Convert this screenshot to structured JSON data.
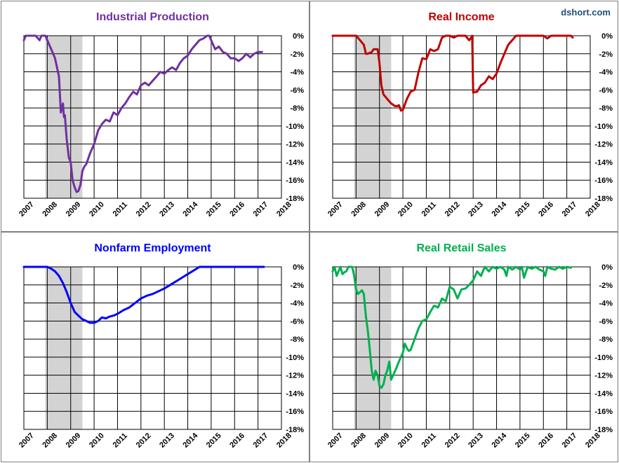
{
  "watermark": {
    "text": "dshort.com",
    "color": "#1f4e79"
  },
  "recession": {
    "start": 2007.917,
    "end": 2009.5,
    "color": "#d3d3d3"
  },
  "chart_data": [
    {
      "type": "line",
      "title": "Industrial Production",
      "color": "#7030a0",
      "xlim": [
        2007,
        2018
      ],
      "ylim": [
        -18,
        0
      ],
      "x_ticks": [
        "2007",
        "2008",
        "2009",
        "2010",
        "2011",
        "2012",
        "2013",
        "2014",
        "2015",
        "2016",
        "2017",
        "2018"
      ],
      "y_ticks": [
        "0%",
        "-2%",
        "-4%",
        "-6%",
        "-8%",
        "-10%",
        "-12%",
        "-14%",
        "-16%",
        "-18%"
      ],
      "grid": true,
      "series": [
        {
          "x": [
            2007.0,
            2007.08,
            2007.17,
            2007.33,
            2007.5,
            2007.67,
            2007.75,
            2007.83,
            2007.92,
            2008.0,
            2008.17,
            2008.33,
            2008.5,
            2008.58,
            2008.67,
            2008.71,
            2008.75,
            2008.83,
            2008.92,
            2009.0,
            2009.08,
            2009.17,
            2009.25,
            2009.33,
            2009.42,
            2009.5,
            2009.58,
            2009.67,
            2009.83,
            2010.0,
            2010.17,
            2010.33,
            2010.5,
            2010.67,
            2010.83,
            2011.0,
            2011.17,
            2011.33,
            2011.5,
            2011.67,
            2011.83,
            2012.0,
            2012.17,
            2012.33,
            2012.5,
            2012.67,
            2012.83,
            2013.0,
            2013.17,
            2013.33,
            2013.5,
            2013.67,
            2013.83,
            2014.0,
            2014.17,
            2014.33,
            2014.5,
            2014.67,
            2014.83,
            2014.92,
            2015.0,
            2015.17,
            2015.33,
            2015.5,
            2015.67,
            2015.83,
            2016.0,
            2016.17,
            2016.33,
            2016.5,
            2016.67,
            2016.83,
            2017.0,
            2017.17
          ],
          "y": [
            -0.5,
            0,
            0,
            0,
            0,
            -0.5,
            0,
            0,
            0,
            -0.5,
            -1.5,
            -2.5,
            -4.5,
            -8.5,
            -7.5,
            -9,
            -8.8,
            -11.5,
            -13.5,
            -14,
            -16,
            -16.8,
            -17.3,
            -17.2,
            -16.5,
            -15,
            -14.5,
            -14.2,
            -13,
            -12,
            -10.5,
            -9.8,
            -9.3,
            -9.5,
            -8.5,
            -8.8,
            -8,
            -7.5,
            -6.8,
            -6.2,
            -6.5,
            -5.5,
            -5.2,
            -5.5,
            -5,
            -4.5,
            -4,
            -4.2,
            -3.8,
            -3.5,
            -3.8,
            -3,
            -2.5,
            -2.2,
            -1.5,
            -1,
            -0.5,
            -0.3,
            0,
            0,
            -0.5,
            -1.5,
            -1.2,
            -1.8,
            -2,
            -2.5,
            -2.5,
            -2.8,
            -2.5,
            -2,
            -2.4,
            -2,
            -1.8,
            -1.8
          ]
        }
      ]
    },
    {
      "type": "line",
      "title": "Real Income",
      "color": "#c00000",
      "xlim": [
        2007,
        2018
      ],
      "ylim": [
        -18,
        0
      ],
      "x_ticks": [
        "2007",
        "2008",
        "2009",
        "2010",
        "2011",
        "2012",
        "2013",
        "2014",
        "2015",
        "2016",
        "2017",
        "2018"
      ],
      "y_ticks": [
        "0%",
        "-2%",
        "-4%",
        "-6%",
        "-8%",
        "-10%",
        "-12%",
        "-14%",
        "-16%",
        "-18%"
      ],
      "grid": true,
      "series": [
        {
          "x": [
            2007.0,
            2007.5,
            2007.8,
            2008.0,
            2008.17,
            2008.33,
            2008.42,
            2008.5,
            2008.67,
            2008.75,
            2008.83,
            2008.92,
            2009.0,
            2009.08,
            2009.17,
            2009.33,
            2009.5,
            2009.67,
            2009.75,
            2009.83,
            2009.92,
            2010.0,
            2010.17,
            2010.33,
            2010.5,
            2010.67,
            2010.83,
            2011.0,
            2011.17,
            2011.33,
            2011.5,
            2011.67,
            2011.83,
            2012.0,
            2012.17,
            2012.33,
            2012.5,
            2012.67,
            2012.83,
            2012.92,
            2012.96,
            2013.0,
            2013.17,
            2013.33,
            2013.5,
            2013.67,
            2013.83,
            2014.0,
            2014.17,
            2014.33,
            2014.5,
            2014.67,
            2014.83,
            2015.0,
            2015.5,
            2016.0,
            2016.17,
            2016.33,
            2016.5,
            2017.0,
            2017.17,
            2017.25
          ],
          "y": [
            0,
            0,
            0,
            0,
            -0.5,
            -1,
            -2,
            -2,
            -1.8,
            -1.5,
            -1.5,
            -1.5,
            -3,
            -5.5,
            -6.5,
            -7,
            -7.5,
            -7.8,
            -7.8,
            -7.7,
            -8.3,
            -8.2,
            -7,
            -6.2,
            -6,
            -4,
            -2.5,
            -2.6,
            -1.5,
            -1.7,
            -1.5,
            -0.2,
            0,
            0,
            -0.2,
            0,
            0,
            0,
            -0.5,
            -0.2,
            0,
            -6.3,
            -6.2,
            -5.5,
            -5.2,
            -4.5,
            -4.8,
            -4.2,
            -3,
            -2,
            -1,
            -0.5,
            0,
            0,
            0,
            0,
            -0.3,
            0,
            0,
            0,
            0,
            -0.2
          ]
        }
      ]
    },
    {
      "type": "line",
      "title": "Nonfarm Employment",
      "color": "#0000ff",
      "xlim": [
        2007,
        2018
      ],
      "ylim": [
        -18,
        0
      ],
      "x_ticks": [
        "2007",
        "2008",
        "2009",
        "2010",
        "2011",
        "2012",
        "2013",
        "2014",
        "2015",
        "2016",
        "2017",
        "2018"
      ],
      "y_ticks": [
        "0%",
        "-2%",
        "-4%",
        "-6%",
        "-8%",
        "-10%",
        "-12%",
        "-14%",
        "-16%",
        "-18%"
      ],
      "grid": true,
      "series": [
        {
          "x": [
            2007.0,
            2007.5,
            2007.83,
            2008.0,
            2008.17,
            2008.33,
            2008.5,
            2008.67,
            2008.83,
            2009.0,
            2009.17,
            2009.33,
            2009.5,
            2009.67,
            2009.83,
            2010.0,
            2010.17,
            2010.33,
            2010.5,
            2010.67,
            2010.83,
            2011.0,
            2011.25,
            2011.5,
            2011.75,
            2012.0,
            2012.25,
            2012.5,
            2012.75,
            2013.0,
            2013.25,
            2013.5,
            2013.75,
            2014.0,
            2014.25,
            2014.5,
            2015.0,
            2016.0,
            2017.0,
            2017.25
          ],
          "y": [
            0,
            0,
            0,
            0,
            -0.2,
            -0.5,
            -1,
            -1.8,
            -2.8,
            -4,
            -5,
            -5.4,
            -5.8,
            -6,
            -6.2,
            -6.2,
            -6,
            -5.6,
            -5.7,
            -5.5,
            -5.4,
            -5.2,
            -4.8,
            -4.5,
            -4,
            -3.5,
            -3.2,
            -3,
            -2.7,
            -2.4,
            -2,
            -1.6,
            -1.2,
            -0.8,
            -0.4,
            0,
            0,
            0,
            0,
            0
          ]
        }
      ]
    },
    {
      "type": "line",
      "title": "Real Retail Sales",
      "color": "#00b050",
      "xlim": [
        2007,
        2018
      ],
      "ylim": [
        -18,
        0
      ],
      "x_ticks": [
        "2007",
        "2008",
        "2009",
        "2010",
        "2011",
        "2012",
        "2013",
        "2014",
        "2015",
        "2016",
        "2017",
        "2018"
      ],
      "y_ticks": [
        "0%",
        "-2%",
        "-4%",
        "-6%",
        "-8%",
        "-10%",
        "-12%",
        "-14%",
        "-16%",
        "-18%"
      ],
      "grid": true,
      "series": [
        {
          "x": [
            2007.0,
            2007.08,
            2007.17,
            2007.25,
            2007.33,
            2007.42,
            2007.5,
            2007.58,
            2007.67,
            2007.75,
            2007.83,
            2007.92,
            2008.0,
            2008.08,
            2008.17,
            2008.25,
            2008.33,
            2008.42,
            2008.5,
            2008.58,
            2008.67,
            2008.75,
            2008.83,
            2008.92,
            2009.0,
            2009.08,
            2009.17,
            2009.25,
            2009.33,
            2009.42,
            2009.5,
            2009.58,
            2009.67,
            2009.75,
            2009.83,
            2010.0,
            2010.08,
            2010.17,
            2010.25,
            2010.33,
            2010.5,
            2010.67,
            2010.83,
            2011.0,
            2011.17,
            2011.33,
            2011.5,
            2011.67,
            2011.83,
            2012.0,
            2012.17,
            2012.33,
            2012.5,
            2012.67,
            2012.83,
            2013.0,
            2013.17,
            2013.33,
            2013.5,
            2013.67,
            2013.83,
            2014.0,
            2014.17,
            2014.33,
            2014.42,
            2014.5,
            2014.67,
            2014.83,
            2015.0,
            2015.08,
            2015.17,
            2015.33,
            2015.5,
            2015.67,
            2015.83,
            2016.0,
            2016.08,
            2016.17,
            2016.33,
            2016.5,
            2016.67,
            2016.83,
            2017.0,
            2017.17
          ],
          "y": [
            -0.5,
            0,
            -1,
            -0.5,
            0,
            -0.8,
            -0.6,
            -0.5,
            0,
            0,
            0,
            -1,
            -2.5,
            -3,
            -2.8,
            -2.6,
            -3,
            -5.5,
            -7,
            -9,
            -11.5,
            -12.5,
            -11.5,
            -12,
            -13.2,
            -13.4,
            -13,
            -12,
            -11.5,
            -10.5,
            -12.5,
            -12,
            -11.5,
            -11,
            -10.5,
            -9.5,
            -8.5,
            -9,
            -9.3,
            -9.2,
            -8,
            -6.8,
            -6,
            -5.8,
            -5,
            -4.3,
            -4.5,
            -3.5,
            -3.8,
            -2.2,
            -2.5,
            -3.5,
            -2.5,
            -2.4,
            -2,
            -1.5,
            -0.5,
            -1,
            0,
            -0.5,
            0,
            -0.2,
            0,
            -0.3,
            -1,
            0,
            -0.3,
            0,
            -0.3,
            0,
            -1.2,
            0,
            -0.2,
            0,
            -0.3,
            -0.5,
            -1,
            0,
            -0.2,
            -0.3,
            0,
            -0.2,
            0,
            -0.1
          ]
        }
      ]
    }
  ]
}
